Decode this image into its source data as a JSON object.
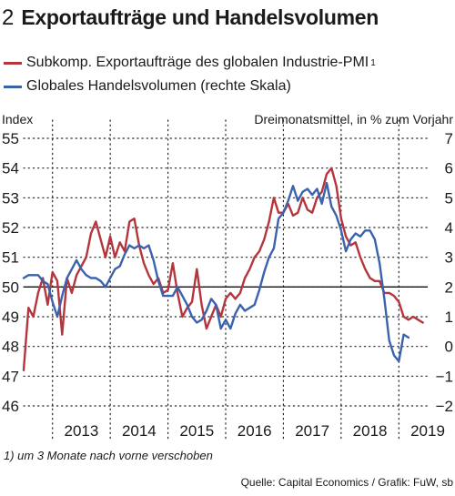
{
  "figure": {
    "number": "2",
    "title": "Exportaufträge und Handelsvolumen",
    "footnote": "1) um 3 Monate nach vorne verschoben",
    "source": "Quelle: Capital Economics / Grafik: FuW, sb"
  },
  "colors": {
    "red": "#b5353c",
    "blue": "#3a62ad",
    "grid": "#222222",
    "text": "#1a1a1a"
  },
  "chart_data": {
    "type": "line",
    "legend_position": "top-left",
    "grid": "dotted vertical gridlines at year boundaries and dotted horizontal gridlines at every left-axis tick, solid reference line at 50",
    "y_left": {
      "label": "Index",
      "ticks": [
        46,
        47,
        48,
        49,
        50,
        51,
        52,
        53,
        54,
        55
      ],
      "range": [
        46,
        55
      ]
    },
    "y_right": {
      "label": "Dreimonatsmittel, in % zum Vorjahr",
      "ticks": [
        "−2",
        "−1",
        "0",
        "1",
        "2",
        "3",
        "4",
        "5",
        "6",
        "7"
      ],
      "range": [
        -2,
        7
      ]
    },
    "x": {
      "labels": [
        "2013",
        "2014",
        "2015",
        "2016",
        "2017",
        "2018",
        "2019"
      ],
      "range": [
        "2012-07",
        "2019-07"
      ]
    },
    "reference_line": 50,
    "series": [
      {
        "name": "Subkomp. Exportaufträge des globalen Industrie-PMI",
        "name_sup": "1",
        "color": "#b5353c",
        "axis": "left",
        "points": [
          [
            "2012-07",
            47.2
          ],
          [
            "2012-08",
            49.3
          ],
          [
            "2012-09",
            49.0
          ],
          [
            "2012-10",
            49.8
          ],
          [
            "2012-11",
            50.3
          ],
          [
            "2012-12",
            49.4
          ],
          [
            "2013-01",
            50.5
          ],
          [
            "2013-02",
            50.2
          ],
          [
            "2013-03",
            48.4
          ],
          [
            "2013-04",
            50.3
          ],
          [
            "2013-05",
            49.8
          ],
          [
            "2013-06",
            50.4
          ],
          [
            "2013-07",
            50.7
          ],
          [
            "2013-08",
            51.0
          ],
          [
            "2013-09",
            51.8
          ],
          [
            "2013-10",
            52.2
          ],
          [
            "2013-11",
            51.6
          ],
          [
            "2013-12",
            51.0
          ],
          [
            "2014-01",
            51.7
          ],
          [
            "2014-02",
            51.0
          ],
          [
            "2014-03",
            51.5
          ],
          [
            "2014-04",
            51.2
          ],
          [
            "2014-05",
            52.2
          ],
          [
            "2014-06",
            52.3
          ],
          [
            "2014-07",
            51.4
          ],
          [
            "2014-08",
            50.8
          ],
          [
            "2014-09",
            50.4
          ],
          [
            "2014-10",
            50.1
          ],
          [
            "2014-11",
            50.3
          ],
          [
            "2014-12",
            49.8
          ],
          [
            "2015-01",
            49.9
          ],
          [
            "2015-02",
            50.8
          ],
          [
            "2015-03",
            49.8
          ],
          [
            "2015-04",
            49.0
          ],
          [
            "2015-05",
            49.3
          ],
          [
            "2015-06",
            49.5
          ],
          [
            "2015-07",
            50.6
          ],
          [
            "2015-08",
            49.4
          ],
          [
            "2015-09",
            48.6
          ],
          [
            "2015-10",
            49.0
          ],
          [
            "2015-11",
            49.4
          ],
          [
            "2015-12",
            49.0
          ],
          [
            "2016-01",
            49.6
          ],
          [
            "2016-02",
            49.8
          ],
          [
            "2016-03",
            49.6
          ],
          [
            "2016-04",
            49.8
          ],
          [
            "2016-05",
            50.3
          ],
          [
            "2016-06",
            50.6
          ],
          [
            "2016-07",
            51.0
          ],
          [
            "2016-08",
            51.2
          ],
          [
            "2016-09",
            51.6
          ],
          [
            "2016-10",
            52.2
          ],
          [
            "2016-11",
            53.0
          ],
          [
            "2016-12",
            52.5
          ],
          [
            "2017-01",
            52.5
          ],
          [
            "2017-02",
            52.8
          ],
          [
            "2017-03",
            52.4
          ],
          [
            "2017-04",
            52.5
          ],
          [
            "2017-05",
            53.0
          ],
          [
            "2017-06",
            52.6
          ],
          [
            "2017-07",
            52.5
          ],
          [
            "2017-08",
            53.0
          ],
          [
            "2017-09",
            53.2
          ],
          [
            "2017-10",
            53.8
          ],
          [
            "2017-11",
            54.0
          ],
          [
            "2017-12",
            53.4
          ],
          [
            "2018-01",
            52.3
          ],
          [
            "2018-02",
            51.7
          ],
          [
            "2018-03",
            51.4
          ],
          [
            "2018-04",
            51.5
          ],
          [
            "2018-05",
            51.0
          ],
          [
            "2018-06",
            50.6
          ],
          [
            "2018-07",
            50.3
          ],
          [
            "2018-08",
            50.2
          ],
          [
            "2018-09",
            50.2
          ],
          [
            "2018-10",
            49.8
          ],
          [
            "2018-11",
            49.8
          ],
          [
            "2018-12",
            49.7
          ],
          [
            "2019-01",
            49.5
          ],
          [
            "2019-02",
            49.0
          ],
          [
            "2019-03",
            48.9
          ],
          [
            "2019-04",
            49.0
          ],
          [
            "2019-05",
            48.9
          ],
          [
            "2019-06",
            48.8
          ]
        ]
      },
      {
        "name": "Globales Handelsvolumen (rechte Skala)",
        "color": "#3a62ad",
        "axis": "right",
        "points": [
          [
            "2012-07",
            2.3
          ],
          [
            "2012-08",
            2.4
          ],
          [
            "2012-09",
            2.4
          ],
          [
            "2012-10",
            2.4
          ],
          [
            "2012-11",
            2.2
          ],
          [
            "2012-12",
            2.1
          ],
          [
            "2013-01",
            1.5
          ],
          [
            "2013-02",
            1.0
          ],
          [
            "2013-03",
            1.7
          ],
          [
            "2013-04",
            2.3
          ],
          [
            "2013-05",
            2.6
          ],
          [
            "2013-06",
            2.9
          ],
          [
            "2013-07",
            2.6
          ],
          [
            "2013-08",
            2.4
          ],
          [
            "2013-09",
            2.3
          ],
          [
            "2013-10",
            2.3
          ],
          [
            "2013-11",
            2.2
          ],
          [
            "2013-12",
            2.0
          ],
          [
            "2014-01",
            2.3
          ],
          [
            "2014-02",
            2.6
          ],
          [
            "2014-03",
            2.7
          ],
          [
            "2014-04",
            3.1
          ],
          [
            "2014-05",
            3.4
          ],
          [
            "2014-06",
            3.3
          ],
          [
            "2014-07",
            3.4
          ],
          [
            "2014-08",
            3.3
          ],
          [
            "2014-09",
            3.4
          ],
          [
            "2014-10",
            2.9
          ],
          [
            "2014-11",
            2.2
          ],
          [
            "2014-12",
            1.7
          ],
          [
            "2015-01",
            1.7
          ],
          [
            "2015-02",
            1.7
          ],
          [
            "2015-03",
            2.0
          ],
          [
            "2015-04",
            1.7
          ],
          [
            "2015-05",
            1.4
          ],
          [
            "2015-06",
            1.0
          ],
          [
            "2015-07",
            0.8
          ],
          [
            "2015-08",
            0.9
          ],
          [
            "2015-09",
            1.2
          ],
          [
            "2015-10",
            1.6
          ],
          [
            "2015-11",
            1.4
          ],
          [
            "2015-12",
            0.6
          ],
          [
            "2016-01",
            0.9
          ],
          [
            "2016-02",
            0.6
          ],
          [
            "2016-03",
            1.1
          ],
          [
            "2016-04",
            1.4
          ],
          [
            "2016-05",
            1.2
          ],
          [
            "2016-06",
            1.3
          ],
          [
            "2016-07",
            1.4
          ],
          [
            "2016-08",
            1.9
          ],
          [
            "2016-09",
            2.5
          ],
          [
            "2016-10",
            3.0
          ],
          [
            "2016-11",
            3.3
          ],
          [
            "2016-12",
            4.3
          ],
          [
            "2017-01",
            4.5
          ],
          [
            "2017-02",
            4.9
          ],
          [
            "2017-03",
            5.4
          ],
          [
            "2017-04",
            4.9
          ],
          [
            "2017-05",
            5.2
          ],
          [
            "2017-06",
            5.3
          ],
          [
            "2017-07",
            5.1
          ],
          [
            "2017-08",
            5.3
          ],
          [
            "2017-09",
            4.8
          ],
          [
            "2017-10",
            5.5
          ],
          [
            "2017-11",
            4.7
          ],
          [
            "2017-12",
            4.4
          ],
          [
            "2018-01",
            3.9
          ],
          [
            "2018-02",
            3.2
          ],
          [
            "2018-03",
            3.6
          ],
          [
            "2018-04",
            3.8
          ],
          [
            "2018-05",
            3.7
          ],
          [
            "2018-06",
            3.9
          ],
          [
            "2018-07",
            3.9
          ],
          [
            "2018-08",
            3.6
          ],
          [
            "2018-09",
            2.8
          ],
          [
            "2018-10",
            1.6
          ],
          [
            "2018-11",
            0.2
          ],
          [
            "2018-12",
            -0.3
          ],
          [
            "2019-01",
            -0.5
          ],
          [
            "2019-02",
            0.4
          ],
          [
            "2019-03",
            0.3
          ]
        ]
      }
    ]
  }
}
